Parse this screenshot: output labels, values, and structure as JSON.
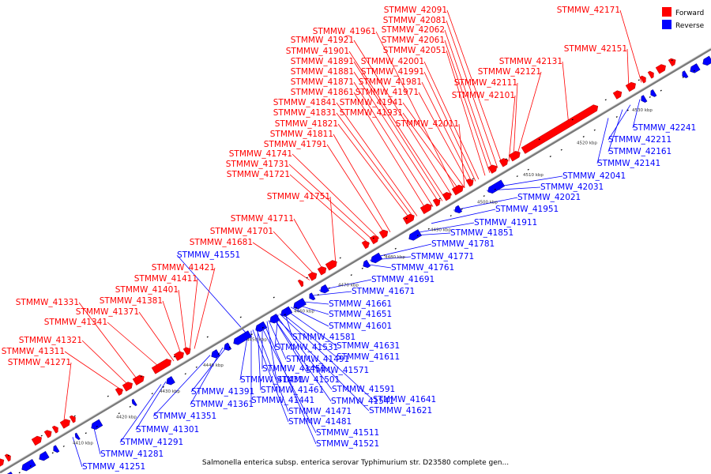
{
  "caption": "Salmonella enterica subsp. enterica serovar Typhimurium str. D23580 complete gen...",
  "colors": {
    "forward": "#ff0000",
    "reverse": "#0000ff",
    "backbone": "#888888"
  },
  "legend": [
    {
      "label": "Forward",
      "color": "#ff0000"
    },
    {
      "label": "Reverse",
      "color": "#0000ff"
    }
  ],
  "ticks": [
    "4410 kbp",
    "4420 kbp",
    "4430 kbp",
    "4440 kbp",
    "4450 kbp",
    "4460 kbp",
    "4470 kbp",
    "4480 kbp",
    "4490 kbp",
    "4500 kbp",
    "4510 kbp",
    "4520 kbp",
    "4530 kbp"
  ],
  "forward_labels": [
    "STMMW_41271",
    "STMMW_41311",
    "STMMW_41321",
    "STMMW_41331",
    "STMMW_41341",
    "STMMW_41371",
    "STMMW_41381",
    "STMMW_41401",
    "STMMW_41411",
    "STMMW_41421",
    "STMMW_41681",
    "STMMW_41701",
    "STMMW_41711",
    "STMMW_41751",
    "STMMW_41721",
    "STMMW_41731",
    "STMMW_41741",
    "STMMW_41791",
    "STMMW_41811",
    "STMMW_41821",
    "STMMW_41831",
    "STMMW_41841",
    "STMMW_41861",
    "STMMW_41871",
    "STMMW_41881",
    "STMMW_41891",
    "STMMW_41901",
    "STMMW_41921",
    "STMMW_41961",
    "STMMW_41931",
    "STMMW_41941",
    "STMMW_41971",
    "STMMW_41981",
    "STMMW_41991",
    "STMMW_42001",
    "STMMW_42011",
    "STMMW_42051",
    "STMMW_42061",
    "STMMW_42062",
    "STMMW_42081",
    "STMMW_42091",
    "STMMW_42101",
    "STMMW_42111",
    "STMMW_42121",
    "STMMW_42131",
    "STMMW_42151",
    "STMMW_42171"
  ],
  "reverse_labels": [
    "STMMW_41551",
    "STMMW_41691",
    "STMMW_41671",
    "STMMW_41661",
    "STMMW_41651",
    "STMMW_41601",
    "STMMW_41581",
    "STMMW_41631",
    "STMMW_41531",
    "STMMW_41611",
    "STMMW_41491",
    "STMMW_41451",
    "STMMW_41571",
    "STMMW_41431",
    "STMMW_41501",
    "STMMW_41391",
    "STMMW_41461",
    "STMMW_41591",
    "STMMW_41361",
    "STMMW_41441",
    "STMMW_41541",
    "STMMW_41641",
    "STMMW_41351",
    "STMMW_41471",
    "STMMW_41621",
    "STMMW_41481",
    "STMMW_41301",
    "STMMW_41511",
    "STMMW_41291",
    "STMMW_41521",
    "STMMW_41281",
    "STMMW_41251",
    "STMMW_41761",
    "STMMW_41771",
    "STMMW_41781",
    "STMMW_41851",
    "STMMW_41911",
    "STMMW_41951",
    "STMMW_42021",
    "STMMW_42031",
    "STMMW_42041",
    "STMMW_42141",
    "STMMW_42161",
    "STMMW_42211",
    "STMMW_42241"
  ]
}
